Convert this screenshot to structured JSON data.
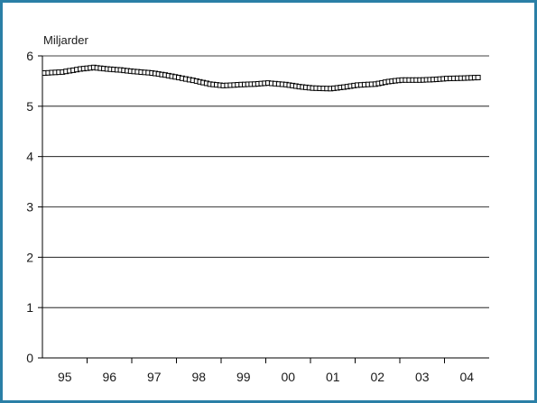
{
  "chart_data": {
    "type": "line",
    "unit_label": "Miljarder",
    "ylim": [
      0,
      6
    ],
    "y_ticks": [
      "0",
      "1",
      "2",
      "3",
      "4",
      "5",
      "6"
    ],
    "categories": [
      "95",
      "96",
      "97",
      "98",
      "99",
      "00",
      "01",
      "02",
      "03",
      "04"
    ],
    "grid": "horizontal",
    "marker": "open-square",
    "colors": {
      "frame": "#2a7fa6",
      "line": "#000000",
      "grid": "#000000"
    },
    "series": [
      {
        "x": [
          1994.6,
          1995.0,
          1995.4,
          1995.7,
          1996.0,
          1996.3,
          1996.6,
          1997.0,
          1997.3,
          1997.6,
          1998.0,
          1998.3,
          1998.6,
          1999.0,
          1999.3,
          1999.6,
          2000.0,
          2000.3,
          2000.6,
          2001.0,
          2001.3,
          2001.6,
          2002.0,
          2002.3,
          2002.6,
          2003.0,
          2003.3,
          2003.6,
          2004.0,
          2004.3
        ],
        "values": [
          5.66,
          5.68,
          5.74,
          5.77,
          5.74,
          5.72,
          5.69,
          5.66,
          5.62,
          5.57,
          5.5,
          5.44,
          5.41,
          5.43,
          5.44,
          5.46,
          5.43,
          5.39,
          5.36,
          5.35,
          5.38,
          5.42,
          5.44,
          5.49,
          5.52,
          5.52,
          5.53,
          5.55,
          5.56,
          5.57
        ]
      }
    ]
  }
}
